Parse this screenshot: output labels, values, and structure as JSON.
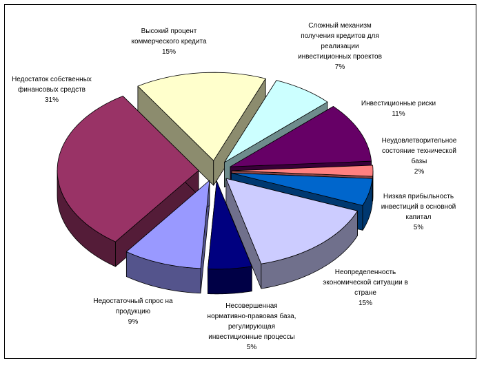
{
  "chart_data": {
    "type": "pie",
    "style": "3d-exploded",
    "title": "",
    "legend": "none",
    "slices": [
      {
        "label": "Высокий процент\nкоммерческого кредита",
        "value": 15,
        "pct": "15%",
        "color": "#FFFFCC",
        "side": "#8C8C6E"
      },
      {
        "label": "Сложный механизм\nполучения кредитов для\nреализации\nинвестиционных проектов",
        "value": 7,
        "pct": "7%",
        "color": "#CCFFFF",
        "side": "#6E8C8C"
      },
      {
        "label": "Инвестиционные риски",
        "value": 11,
        "pct": "11%",
        "color": "#660066",
        "side": "#380038"
      },
      {
        "label": "Неудовлетворительное\nсостояние технической\nбазы",
        "value": 2,
        "pct": "2%",
        "color": "#FF8080",
        "side": "#8C4646"
      },
      {
        "label": "Низкая прибыльность\nинвестиций в основной\nкапитал",
        "value": 5,
        "pct": "5%",
        "color": "#0066CC",
        "side": "#003870"
      },
      {
        "label": "Неопределенность\nэкономической ситуации в\nстране",
        "value": 15,
        "pct": "15%",
        "color": "#CCCCFF",
        "side": "#70708C"
      },
      {
        "label": "Несовершенная\nнормативно-правовая база,\nрегулирующая\nинвестиционные процессы",
        "value": 5,
        "pct": "5%",
        "color": "#000080",
        "side": "#000046"
      },
      {
        "label": "Недостаточный спрос на\nпродукцию",
        "value": 9,
        "pct": "9%",
        "color": "#9999FF",
        "side": "#54548C"
      },
      {
        "label": "Недостаток собственных\nфинансовых средств",
        "value": 31,
        "pct": "31%",
        "color": "#993366",
        "side": "#541C38"
      }
    ]
  }
}
